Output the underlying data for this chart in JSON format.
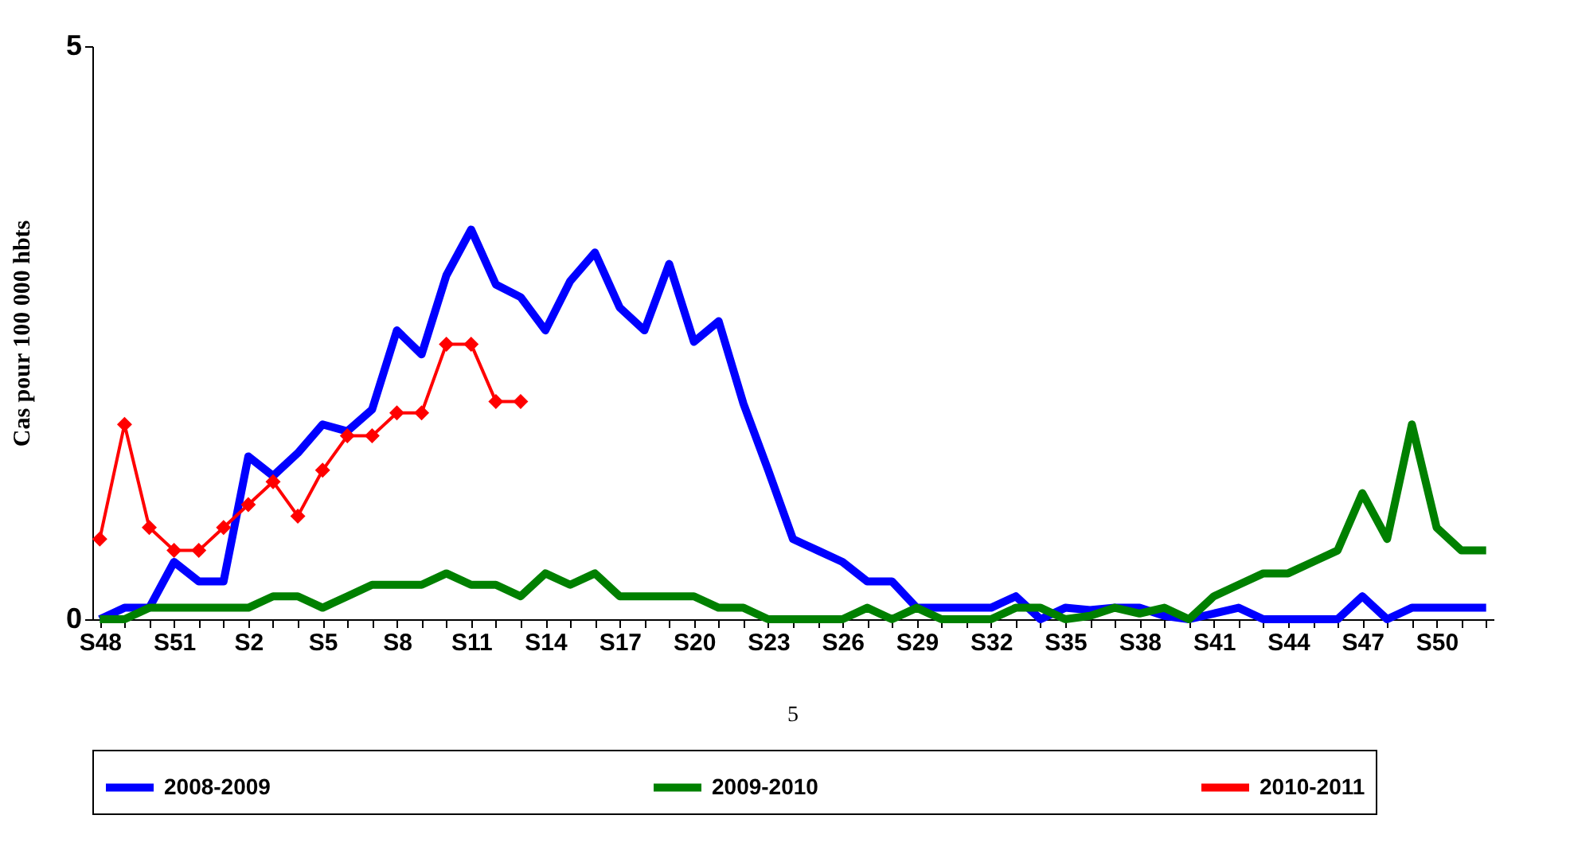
{
  "chart_data": {
    "type": "line",
    "ylabel": "Cas pour 100 000 hbts",
    "categories": [
      "S48",
      null,
      null,
      "S51",
      null,
      null,
      "S2",
      null,
      null,
      "S5",
      null,
      null,
      "S8",
      null,
      null,
      "S11",
      null,
      null,
      "S14",
      null,
      null,
      "S17",
      null,
      null,
      "S20",
      null,
      null,
      "S23",
      null,
      null,
      "S26",
      null,
      null,
      "S29",
      null,
      null,
      "S32",
      null,
      null,
      "S35",
      null,
      null,
      "S38",
      null,
      null,
      "S41",
      null,
      null,
      "S44",
      null,
      null,
      "S47",
      null,
      null,
      "S50",
      null,
      null
    ],
    "series": [
      {
        "name": "2008-2009",
        "color": "#0000ff",
        "values": [
          0,
          0.1,
          0.1,
          0.5,
          0.33,
          0.33,
          1.42,
          1.25,
          1.45,
          1.7,
          1.64,
          1.83,
          2.52,
          2.31,
          3.0,
          3.4,
          2.92,
          2.81,
          2.52,
          2.95,
          3.2,
          2.72,
          2.52,
          3.1,
          2.42,
          2.6,
          1.88,
          1.3,
          0.7,
          0.6,
          0.5,
          0.33,
          0.33,
          0.1,
          0.1,
          0.1,
          0.1,
          0.2,
          0,
          0.1,
          0.08,
          0.1,
          0.1,
          0.03,
          0,
          0.05,
          0.1,
          0,
          0,
          0,
          0,
          0.2,
          0,
          0.1,
          0.1,
          0.1,
          0.1
        ]
      },
      {
        "name": "2009-2010",
        "color": "#008000",
        "values": [
          0,
          0,
          0.1,
          0.1,
          0.1,
          0.1,
          0.1,
          0.2,
          0.2,
          0.1,
          0.2,
          0.3,
          0.3,
          0.3,
          0.4,
          0.3,
          0.3,
          0.2,
          0.4,
          0.3,
          0.4,
          0.2,
          0.2,
          0.2,
          0.2,
          0.1,
          0.1,
          0,
          0,
          0,
          0,
          0.1,
          0,
          0.1,
          0,
          0,
          0,
          0.1,
          0.1,
          0,
          0.03,
          0.1,
          0.05,
          0.1,
          0,
          0.2,
          0.3,
          0.4,
          0.4,
          0.5,
          0.6,
          1.1,
          0.7,
          1.7,
          0.8,
          0.6,
          0.6
        ]
      },
      {
        "name": "2010-2011",
        "color": "#ff0000",
        "marker": "diamond",
        "values": [
          0.7,
          1.7,
          0.8,
          0.6,
          0.6,
          0.8,
          1.0,
          1.2,
          0.9,
          1.3,
          1.6,
          1.6,
          1.8,
          1.8,
          2.4,
          2.4,
          1.9,
          1.9,
          null,
          null,
          null,
          null,
          null,
          null,
          null,
          null,
          null,
          null,
          null,
          null,
          null,
          null,
          null,
          null,
          null,
          null,
          null,
          null,
          null,
          null,
          null,
          null,
          null,
          null,
          null,
          null,
          null,
          null,
          null,
          null,
          null,
          null,
          null,
          null,
          null,
          null,
          null
        ]
      }
    ],
    "ylim": [
      0,
      5
    ],
    "yticks": [
      0,
      5
    ],
    "grid": false,
    "legend": "bottom",
    "annotations": [
      "5"
    ]
  }
}
